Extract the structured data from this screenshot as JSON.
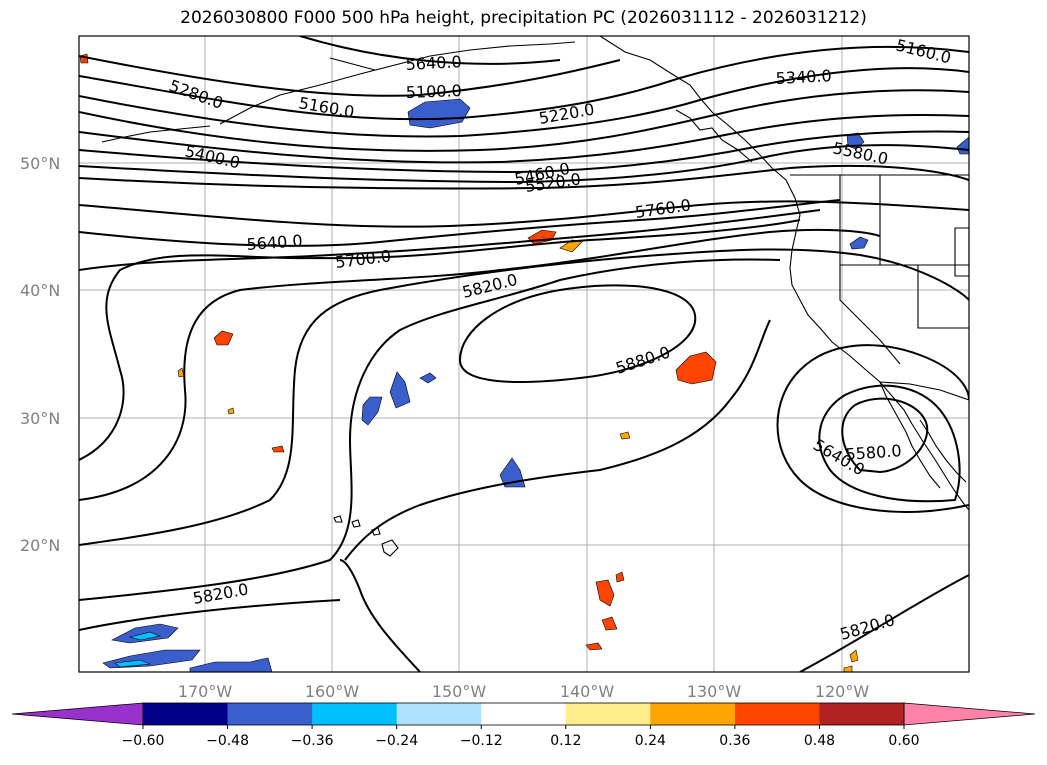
{
  "title": "2026030800 F000 500 hPa height, precipitation PC (2026031112 - 2026031212)",
  "lat_labels": [
    "50°N",
    "40°N",
    "30°N",
    "20°N"
  ],
  "lon_labels": [
    "170°W",
    "160°W",
    "150°W",
    "140°W",
    "130°W",
    "120°W"
  ],
  "contour_labels": [
    "5640.0",
    "5160.0",
    "5100.0",
    "5280.0",
    "5160.0",
    "5220.0",
    "5340.0",
    "5580.0",
    "5400.0",
    "5460.0",
    "5520.0",
    "5760.0",
    "5640.0",
    "5700.0",
    "5820.0",
    "5880.0",
    "5640.0",
    "5580.0",
    "5820.0",
    "5820.0"
  ],
  "colorbar": {
    "ticks": [
      "−0.60",
      "−0.48",
      "−0.36",
      "−0.24",
      "−0.12",
      "0.12",
      "0.24",
      "0.36",
      "0.48",
      "0.60"
    ],
    "colors": [
      "#9932cc",
      "#00008b",
      "#3a5fcd",
      "#00bfff",
      "#b0e2ff",
      "#ffffff",
      "#ffec8b",
      "#ffa500",
      "#ff4500",
      "#b22222",
      "#ff82ab"
    ]
  },
  "map_colors": {
    "land_outline": "#000000",
    "contour": "#000000",
    "grid": "#b0b0b0"
  }
}
